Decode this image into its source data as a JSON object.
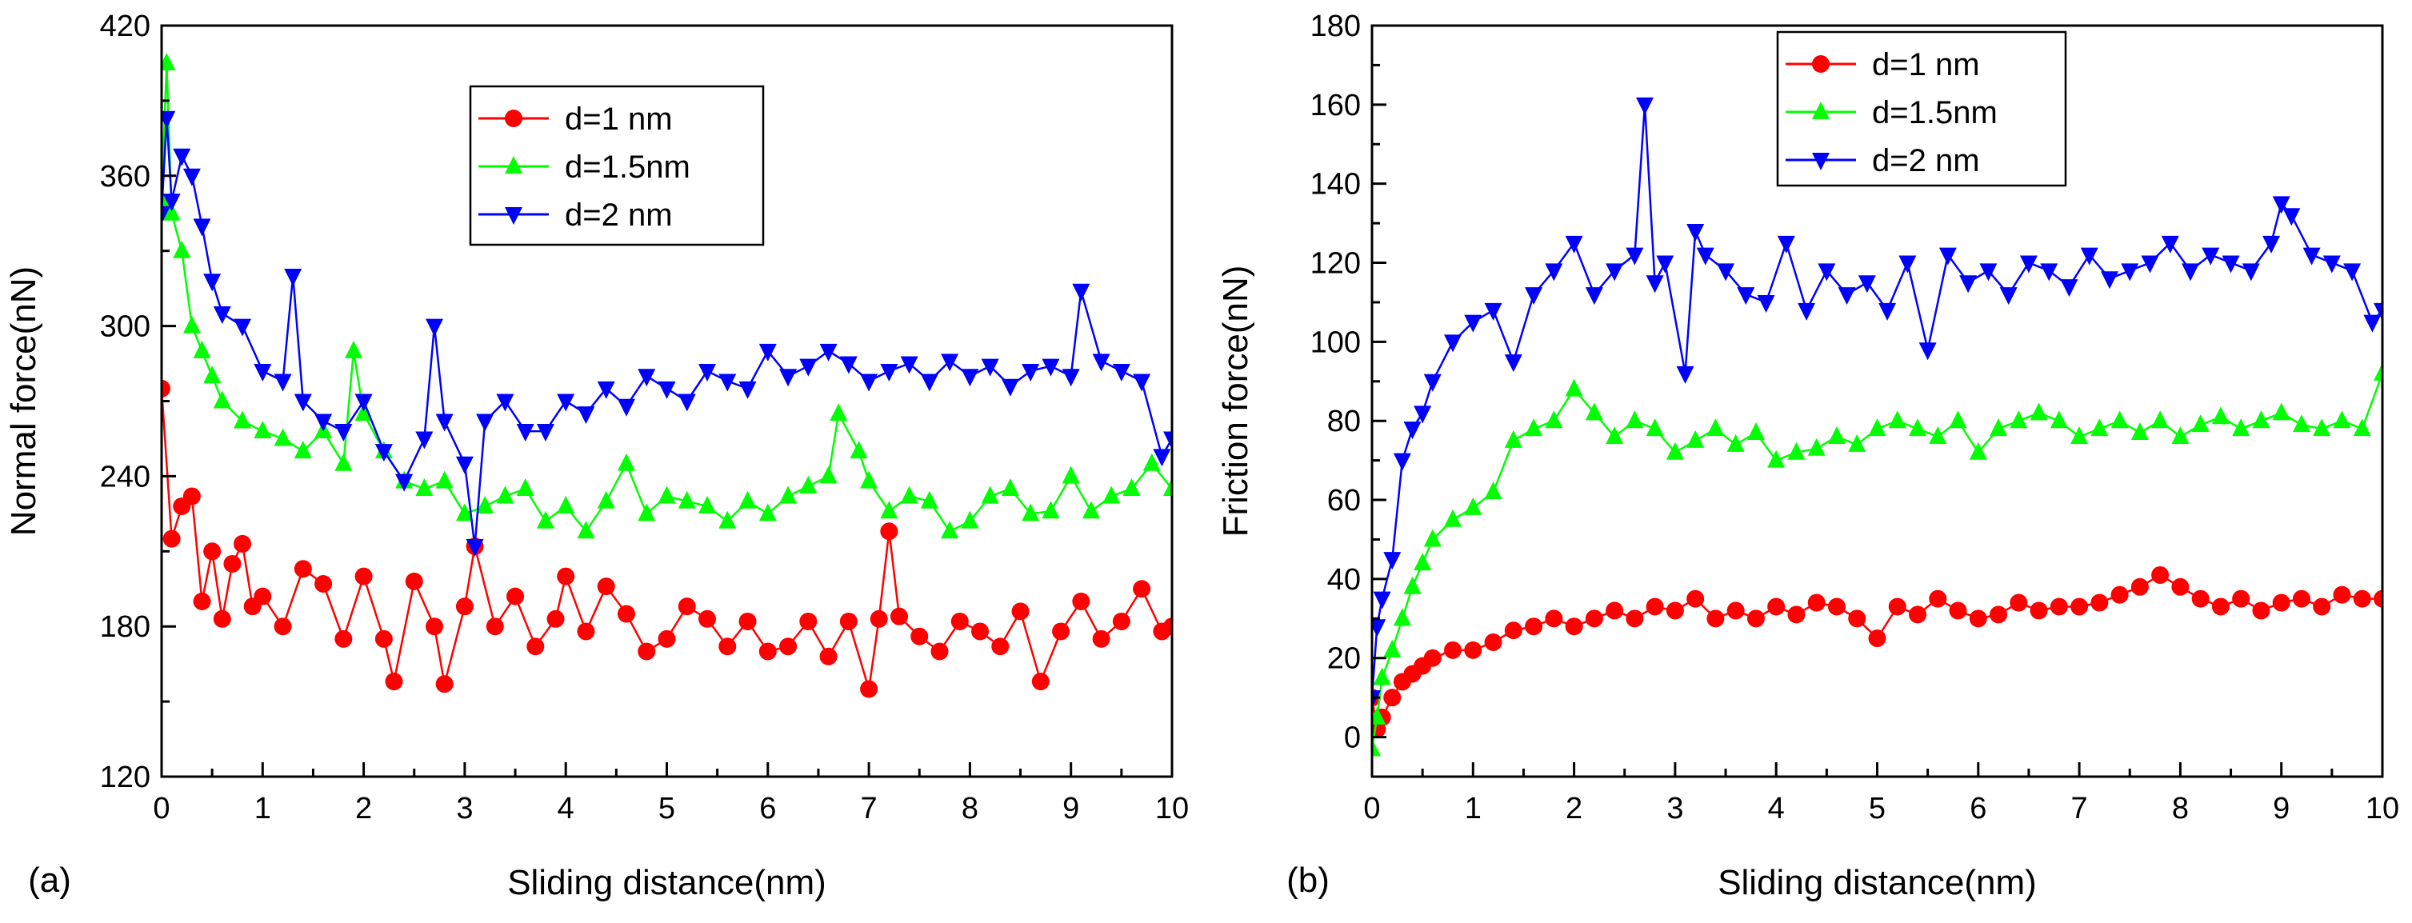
{
  "chart_data": [
    {
      "type": "line",
      "panel_label": "(a)",
      "xlabel": "Sliding distance(nm)",
      "ylabel": "Normal force(nN)",
      "xlim": [
        0,
        10
      ],
      "ylim": [
        120,
        420
      ],
      "xticks": [
        "0",
        "1",
        "2",
        "3",
        "4",
        "5",
        "6",
        "7",
        "8",
        "9",
        "10"
      ],
      "yticks": [
        "120",
        "180",
        "240",
        "300",
        "360",
        "420"
      ],
      "legend_position": "top-center",
      "series": [
        {
          "name": "d=1 nm",
          "marker": "circle",
          "color": "#ff0000",
          "x": [
            0,
            0.1,
            0.2,
            0.3,
            0.4,
            0.5,
            0.6,
            0.7,
            0.8,
            0.9,
            1.0,
            1.2,
            1.4,
            1.6,
            1.8,
            2.0,
            2.2,
            2.3,
            2.5,
            2.7,
            2.8,
            3.0,
            3.1,
            3.3,
            3.5,
            3.7,
            3.9,
            4.0,
            4.2,
            4.4,
            4.6,
            4.8,
            5.0,
            5.2,
            5.4,
            5.6,
            5.8,
            6.0,
            6.2,
            6.4,
            6.6,
            6.8,
            7.0,
            7.1,
            7.2,
            7.3,
            7.5,
            7.7,
            7.9,
            8.1,
            8.3,
            8.5,
            8.7,
            8.9,
            9.1,
            9.3,
            9.5,
            9.7,
            9.9,
            10.0
          ],
          "values": [
            275,
            215,
            228,
            232,
            190,
            210,
            183,
            205,
            213,
            188,
            192,
            180,
            203,
            197,
            175,
            200,
            175,
            158,
            198,
            180,
            157,
            188,
            212,
            180,
            192,
            172,
            183,
            200,
            178,
            196,
            185,
            170,
            175,
            188,
            183,
            172,
            182,
            170,
            172,
            182,
            168,
            182,
            155,
            183,
            218,
            184,
            176,
            170,
            182,
            178,
            172,
            186,
            158,
            178,
            190,
            175,
            182,
            195,
            178,
            180
          ]
        },
        {
          "name": "d=1.5nm",
          "marker": "triangle-up",
          "color": "#00ff00",
          "x": [
            0,
            0.05,
            0.1,
            0.2,
            0.3,
            0.4,
            0.5,
            0.6,
            0.8,
            1.0,
            1.2,
            1.4,
            1.6,
            1.8,
            1.9,
            2.0,
            2.2,
            2.4,
            2.6,
            2.8,
            3.0,
            3.2,
            3.4,
            3.6,
            3.8,
            4.0,
            4.2,
            4.4,
            4.6,
            4.8,
            5.0,
            5.2,
            5.4,
            5.6,
            5.8,
            6.0,
            6.2,
            6.4,
            6.6,
            6.7,
            6.9,
            7.0,
            7.2,
            7.4,
            7.6,
            7.8,
            8.0,
            8.2,
            8.4,
            8.6,
            8.8,
            9.0,
            9.2,
            9.4,
            9.6,
            9.8,
            10.0
          ],
          "values": [
            350,
            405,
            345,
            330,
            300,
            290,
            280,
            270,
            262,
            258,
            255,
            250,
            258,
            245,
            290,
            265,
            250,
            238,
            235,
            238,
            225,
            228,
            232,
            235,
            222,
            228,
            218,
            230,
            245,
            225,
            232,
            230,
            228,
            222,
            230,
            225,
            232,
            236,
            240,
            265,
            250,
            238,
            226,
            232,
            230,
            218,
            222,
            232,
            235,
            225,
            226,
            240,
            226,
            232,
            235,
            245,
            235
          ]
        },
        {
          "name": "d=2 nm",
          "marker": "triangle-down",
          "color": "#0000ff",
          "x": [
            0,
            0.05,
            0.1,
            0.2,
            0.3,
            0.4,
            0.5,
            0.6,
            0.8,
            1.0,
            1.2,
            1.3,
            1.4,
            1.6,
            1.8,
            2.0,
            2.2,
            2.4,
            2.6,
            2.7,
            2.8,
            3.0,
            3.1,
            3.2,
            3.4,
            3.6,
            3.8,
            4.0,
            4.2,
            4.4,
            4.6,
            4.8,
            5.0,
            5.2,
            5.4,
            5.6,
            5.8,
            6.0,
            6.2,
            6.4,
            6.6,
            6.8,
            7.0,
            7.2,
            7.4,
            7.6,
            7.8,
            8.0,
            8.2,
            8.4,
            8.6,
            8.8,
            9.0,
            9.1,
            9.3,
            9.5,
            9.7,
            9.9,
            10.0
          ],
          "values": [
            345,
            383,
            350,
            368,
            360,
            340,
            318,
            305,
            300,
            282,
            278,
            320,
            270,
            262,
            258,
            270,
            250,
            238,
            255,
            300,
            262,
            245,
            212,
            262,
            270,
            258,
            258,
            270,
            265,
            275,
            268,
            280,
            275,
            270,
            282,
            278,
            275,
            290,
            280,
            284,
            290,
            285,
            278,
            282,
            285,
            278,
            286,
            280,
            284,
            276,
            282,
            284,
            280,
            314,
            286,
            282,
            278,
            248,
            255
          ]
        }
      ]
    },
    {
      "type": "line",
      "panel_label": "(b)",
      "xlabel": "Sliding distance(nm)",
      "ylabel": "Friction force(nN)",
      "xlim": [
        0,
        10
      ],
      "ylim": [
        -10,
        180
      ],
      "xticks": [
        "0",
        "1",
        "2",
        "3",
        "4",
        "5",
        "6",
        "7",
        "8",
        "9",
        "10"
      ],
      "yticks": [
        "0",
        "20",
        "40",
        "60",
        "80",
        "100",
        "120",
        "140",
        "160",
        "180"
      ],
      "legend_position": "top-center",
      "series": [
        {
          "name": "d=1 nm",
          "marker": "circle",
          "color": "#ff0000",
          "x": [
            0,
            0.05,
            0.1,
            0.2,
            0.3,
            0.4,
            0.5,
            0.6,
            0.8,
            1.0,
            1.2,
            1.4,
            1.6,
            1.8,
            2.0,
            2.2,
            2.4,
            2.6,
            2.8,
            3.0,
            3.2,
            3.4,
            3.6,
            3.8,
            4.0,
            4.2,
            4.4,
            4.6,
            4.8,
            5.0,
            5.2,
            5.4,
            5.6,
            5.8,
            6.0,
            6.2,
            6.4,
            6.6,
            6.8,
            7.0,
            7.2,
            7.4,
            7.6,
            7.8,
            8.0,
            8.2,
            8.4,
            8.6,
            8.8,
            9.0,
            9.2,
            9.4,
            9.6,
            9.8,
            10.0
          ],
          "values": [
            10,
            2,
            5,
            10,
            14,
            16,
            18,
            20,
            22,
            22,
            24,
            27,
            28,
            30,
            28,
            30,
            32,
            30,
            33,
            32,
            35,
            30,
            32,
            30,
            33,
            31,
            34,
            33,
            30,
            25,
            33,
            31,
            35,
            32,
            30,
            31,
            34,
            32,
            33,
            33,
            34,
            36,
            38,
            41,
            38,
            35,
            33,
            35,
            32,
            34,
            35,
            33,
            36,
            35,
            35
          ]
        },
        {
          "name": "d=1.5nm",
          "marker": "triangle-up",
          "color": "#00ff00",
          "x": [
            0,
            0.05,
            0.1,
            0.2,
            0.3,
            0.4,
            0.5,
            0.6,
            0.8,
            1.0,
            1.2,
            1.4,
            1.6,
            1.8,
            2.0,
            2.2,
            2.4,
            2.6,
            2.8,
            3.0,
            3.2,
            3.4,
            3.6,
            3.8,
            4.0,
            4.2,
            4.4,
            4.6,
            4.8,
            5.0,
            5.2,
            5.4,
            5.6,
            5.8,
            6.0,
            6.2,
            6.4,
            6.6,
            6.8,
            7.0,
            7.2,
            7.4,
            7.6,
            7.8,
            8.0,
            8.2,
            8.4,
            8.6,
            8.8,
            9.0,
            9.2,
            9.4,
            9.6,
            9.8,
            10.0
          ],
          "values": [
            -3,
            5,
            15,
            22,
            30,
            38,
            44,
            50,
            55,
            58,
            62,
            75,
            78,
            80,
            88,
            82,
            76,
            80,
            78,
            72,
            75,
            78,
            74,
            77,
            70,
            72,
            73,
            76,
            74,
            78,
            80,
            78,
            76,
            80,
            72,
            78,
            80,
            82,
            80,
            76,
            78,
            80,
            77,
            80,
            76,
            79,
            81,
            78,
            80,
            82,
            79,
            78,
            80,
            78,
            92
          ]
        },
        {
          "name": "d=2 nm",
          "marker": "triangle-down",
          "color": "#0000ff",
          "x": [
            0,
            0.05,
            0.1,
            0.2,
            0.3,
            0.4,
            0.5,
            0.6,
            0.8,
            1.0,
            1.2,
            1.4,
            1.6,
            1.8,
            2.0,
            2.2,
            2.4,
            2.6,
            2.7,
            2.8,
            2.9,
            3.1,
            3.2,
            3.3,
            3.5,
            3.7,
            3.9,
            4.1,
            4.3,
            4.5,
            4.7,
            4.9,
            5.1,
            5.3,
            5.5,
            5.7,
            5.9,
            6.1,
            6.3,
            6.5,
            6.7,
            6.9,
            7.1,
            7.3,
            7.5,
            7.7,
            7.9,
            8.1,
            8.3,
            8.5,
            8.7,
            8.9,
            9.0,
            9.1,
            9.3,
            9.5,
            9.7,
            9.9,
            10.0
          ],
          "values": [
            10,
            28,
            35,
            45,
            70,
            78,
            82,
            90,
            100,
            105,
            108,
            95,
            112,
            118,
            125,
            112,
            118,
            122,
            160,
            115,
            120,
            92,
            128,
            122,
            118,
            112,
            110,
            125,
            108,
            118,
            112,
            115,
            108,
            120,
            98,
            122,
            115,
            118,
            112,
            120,
            118,
            114,
            122,
            116,
            118,
            120,
            125,
            118,
            122,
            120,
            118,
            125,
            135,
            132,
            122,
            120,
            118,
            105,
            108
          ]
        }
      ]
    }
  ]
}
